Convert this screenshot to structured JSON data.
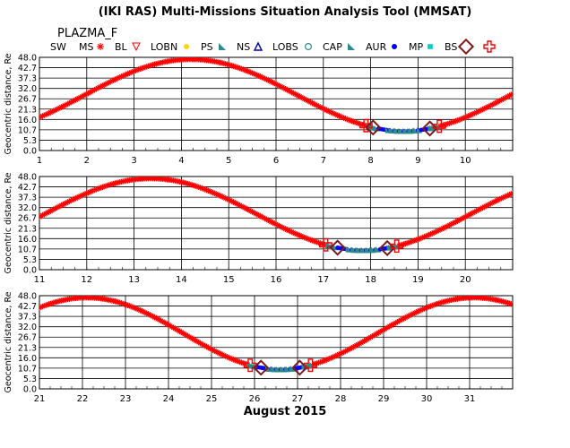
{
  "title": "(IKI RAS) Multi-Missions Situation Analysis Tool (MMSAT)",
  "mission": "PLAZMA_F",
  "month_label": "August 2015",
  "legend": [
    {
      "label": "SW",
      "icon": "none",
      "color": "#ff0000"
    },
    {
      "label": "MS",
      "icon": "star-icon",
      "color": "#ff0000"
    },
    {
      "label": "BL",
      "icon": "triangle-down-icon",
      "color": "#ff0000"
    },
    {
      "label": "LOBN",
      "icon": "dot-icon",
      "color": "#ffd700"
    },
    {
      "label": "PS",
      "icon": "filled-triangle-icon",
      "color": "#2e8b8b"
    },
    {
      "label": "NS",
      "icon": "triangle-icon",
      "color": "#0000aa"
    },
    {
      "label": "LOBS",
      "icon": "circle-icon",
      "color": "#2e8b8b"
    },
    {
      "label": "CAP",
      "icon": "filled-triangle-icon",
      "color": "#2e8b8b"
    },
    {
      "label": "AUR",
      "icon": "dot-icon",
      "color": "#0000ff"
    },
    {
      "label": "MP",
      "icon": "square-icon",
      "color": "#00cccc"
    },
    {
      "label": "BS",
      "icon": "diamond-icon",
      "color": "#7a1a1a"
    },
    {
      "label": "",
      "icon": "cross-icon",
      "color": "#ff0000"
    }
  ],
  "chart_data": [
    {
      "type": "scatter",
      "ylabel": "Geocentric distance, Re",
      "ylim": [
        0,
        48
      ],
      "yticks": [
        "0.0",
        "5.3",
        "10.7",
        "16.0",
        "21.3",
        "26.7",
        "32.0",
        "37.3",
        "42.7",
        "48.0"
      ],
      "xlim": [
        1,
        11
      ],
      "xticks": [
        "1",
        "2",
        "3",
        "4",
        "5",
        "6",
        "7",
        "8",
        "9",
        "10"
      ],
      "orbit": {
        "perigee_day": 8.7,
        "perigee_re": 10.0,
        "apogee_re": 47.0,
        "period_days": 9.0
      },
      "crossings": [
        {
          "region": "MP",
          "day": 7.9
        },
        {
          "region": "BS",
          "day": 8.05
        },
        {
          "region": "BS",
          "day": 9.25
        },
        {
          "region": "MP",
          "day": 9.45
        }
      ]
    },
    {
      "type": "scatter",
      "ylabel": "Geocentric distance, Re",
      "ylim": [
        0,
        48
      ],
      "yticks": [
        "0.0",
        "5.3",
        "10.7",
        "16.0",
        "21.3",
        "26.7",
        "32.0",
        "37.3",
        "42.7",
        "48.0"
      ],
      "xlim": [
        11,
        21
      ],
      "xticks": [
        "11",
        "12",
        "13",
        "14",
        "15",
        "16",
        "17",
        "18",
        "19",
        "20"
      ],
      "orbit": {
        "perigee_day": 17.85,
        "perigee_re": 10.0,
        "apogee_re": 47.0,
        "period_days": 9.0
      },
      "crossings": [
        {
          "region": "MP",
          "day": 17.05
        },
        {
          "region": "BS",
          "day": 17.3
        },
        {
          "region": "BS",
          "day": 18.35
        },
        {
          "region": "MP",
          "day": 18.55
        }
      ]
    },
    {
      "type": "scatter",
      "ylabel": "Geocentric distance, Re",
      "ylim": [
        0,
        48
      ],
      "yticks": [
        "0.0",
        "5.3",
        "10.7",
        "16.0",
        "21.3",
        "26.7",
        "32.0",
        "37.3",
        "42.7",
        "48.0"
      ],
      "xlim": [
        21,
        32
      ],
      "xticks": [
        "21",
        "22",
        "23",
        "24",
        "25",
        "26",
        "27",
        "28",
        "29",
        "30",
        "31"
      ],
      "orbit": {
        "perigee_day": 26.6,
        "perigee_re": 10.0,
        "apogee_re": 47.0,
        "period_days": 9.0
      },
      "crossings": [
        {
          "region": "MP",
          "day": 25.9
        },
        {
          "region": "BS",
          "day": 26.15
        },
        {
          "region": "BS",
          "day": 27.05
        },
        {
          "region": "MP",
          "day": 27.3
        }
      ]
    }
  ]
}
